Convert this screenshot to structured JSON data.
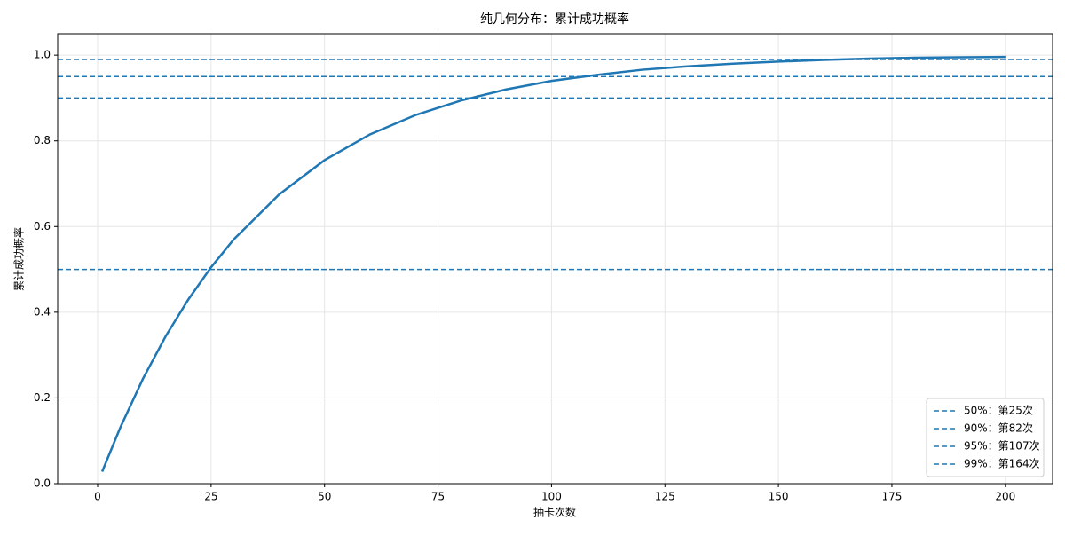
{
  "chart_data": {
    "type": "line",
    "title": "纯几何分布：累计成功概率",
    "xlabel": "抽卡次数",
    "ylabel": "累计成功概率",
    "x": [
      1,
      5,
      10,
      15,
      20,
      25,
      30,
      40,
      50,
      60,
      70,
      80,
      90,
      100,
      110,
      120,
      130,
      140,
      150,
      160,
      170,
      180,
      190,
      200
    ],
    "series": [
      {
        "color": "#1f77b4",
        "values": [
          0.028,
          0.131,
          0.245,
          0.344,
          0.43,
          0.505,
          0.57,
          0.675,
          0.755,
          0.815,
          0.86,
          0.894,
          0.92,
          0.94,
          0.954,
          0.966,
          0.974,
          0.98,
          0.985,
          0.989,
          0.992,
          0.994,
          0.995,
          0.996
        ]
      }
    ],
    "hlines": [
      {
        "name": "50%：第25次",
        "value": 0.5,
        "color": "#1f77b4"
      },
      {
        "name": "90%：第82次",
        "value": 0.9,
        "color": "#1f77b4"
      },
      {
        "name": "95%：第107次",
        "value": 0.95,
        "color": "#1f77b4"
      },
      {
        "name": "99%：第164次",
        "value": 0.99,
        "color": "#1f77b4"
      }
    ],
    "xlim": [
      -8.8,
      210.4
    ],
    "xticks": [
      0,
      25,
      50,
      75,
      100,
      125,
      150,
      175,
      200
    ],
    "ylim": [
      0,
      1.05
    ],
    "yticks": [
      {
        "value": 0,
        "label": "0.0"
      },
      0.2,
      0.4,
      0.6,
      0.8,
      {
        "value": 1,
        "label": "1.0"
      }
    ],
    "grid": true,
    "legend": "lower right"
  }
}
